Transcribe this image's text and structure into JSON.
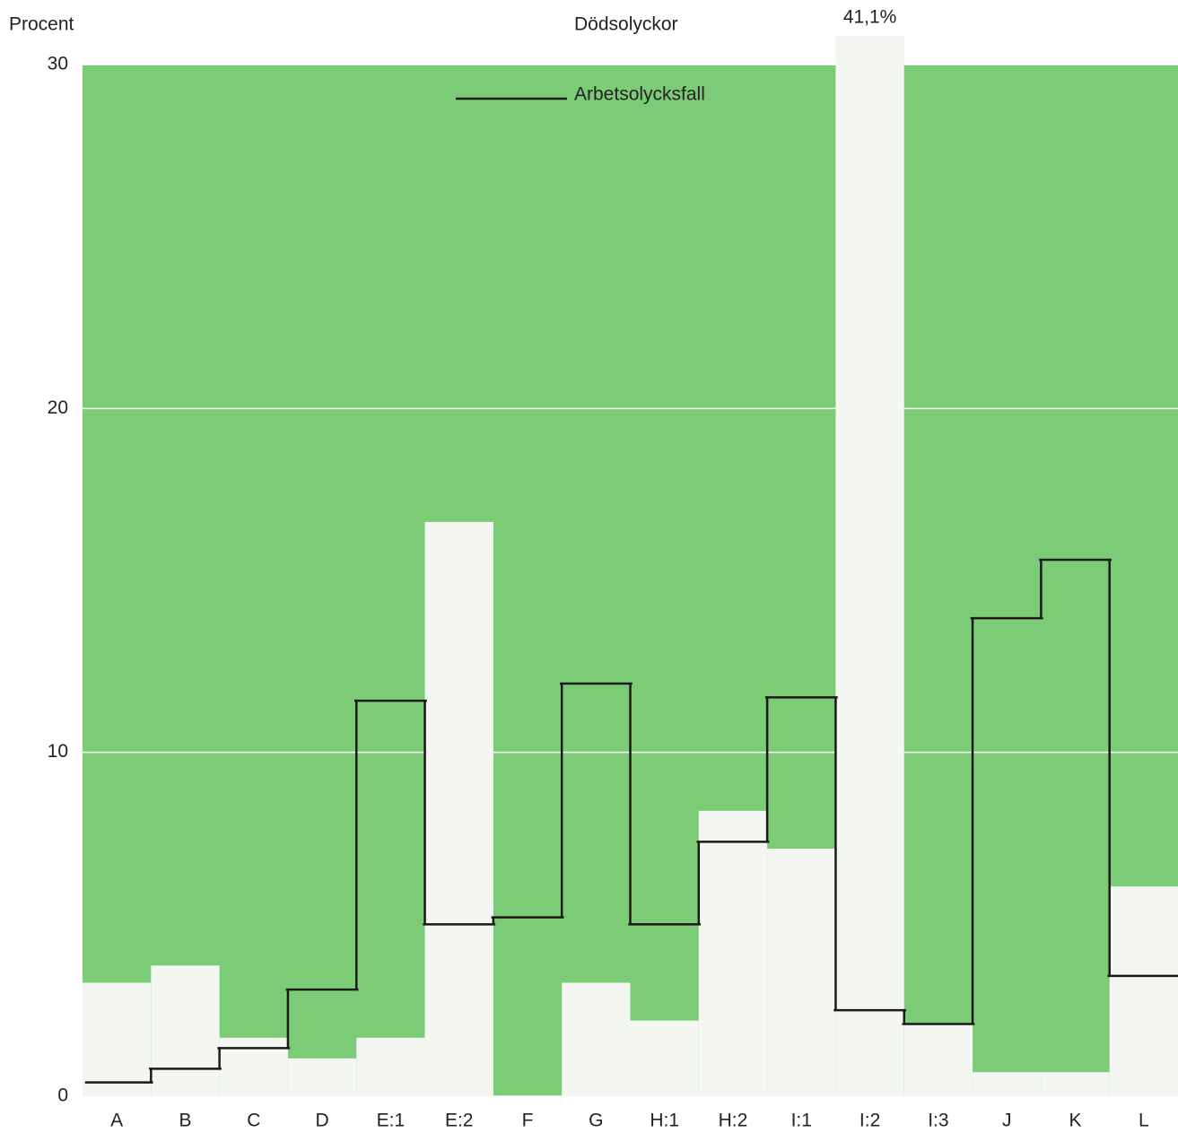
{
  "chart_data": {
    "type": "bar",
    "y_label": "Procent",
    "categories": [
      "A",
      "B",
      "C",
      "D",
      "E:1",
      "E:2",
      "F",
      "G",
      "H:1",
      "H:2",
      "I:1",
      "I:2",
      "I:3",
      "J",
      "K",
      "L"
    ],
    "series": [
      {
        "name": "Dödsolyckor",
        "type": "bar",
        "color": "#f3f6f1",
        "values": [
          3.3,
          3.8,
          1.7,
          1.1,
          1.7,
          16.7,
          0,
          3.3,
          2.2,
          8.3,
          7.2,
          41.1,
          2.1,
          0.7,
          0.7,
          6.1
        ],
        "value_labels": [
          null,
          null,
          null,
          null,
          null,
          null,
          null,
          null,
          null,
          null,
          null,
          "41,1%",
          null,
          null,
          null,
          null
        ]
      },
      {
        "name": "Arbetsolycksfall",
        "type": "step",
        "color": "#1a1a1a",
        "values": [
          0.4,
          0.8,
          1.4,
          3.1,
          11.5,
          5.0,
          5.2,
          12.0,
          5.0,
          7.4,
          11.6,
          2.5,
          2.1,
          13.9,
          15.6,
          3.5
        ]
      }
    ],
    "background": "#7ccb77",
    "ylim": [
      0,
      30
    ],
    "yticks": [
      0,
      10,
      20,
      30
    ],
    "grid": true
  }
}
